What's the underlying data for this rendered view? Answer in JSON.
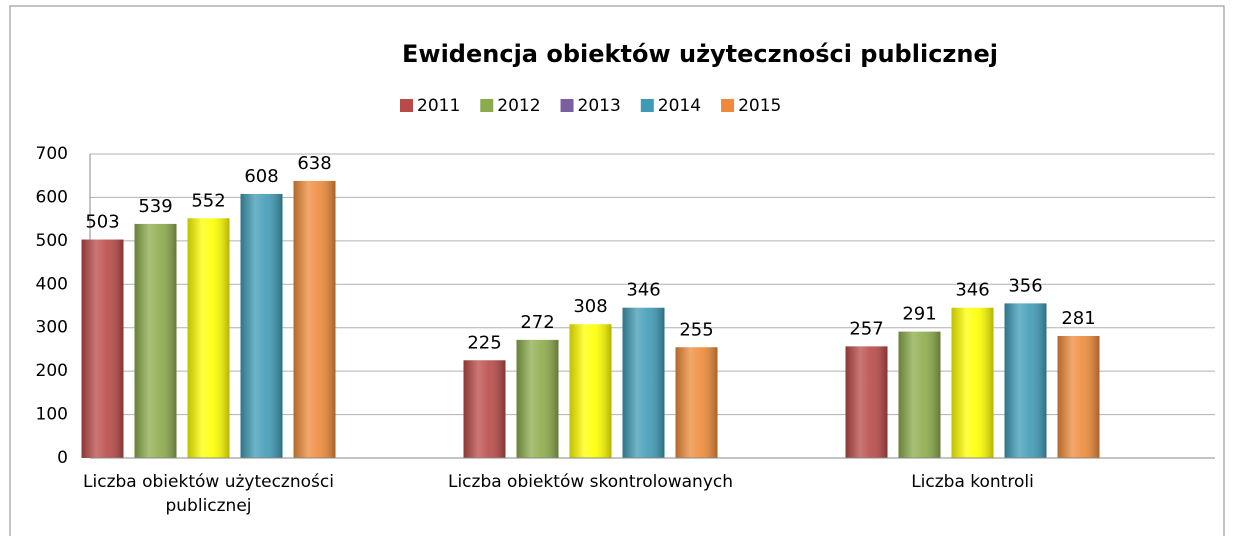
{
  "chart_data": {
    "type": "bar",
    "title": "Ewidencja obiektów użyteczności publicznej",
    "categories": [
      "Liczba obiektów użyteczności publicznej",
      "Liczba obiektów skontrolowanych",
      "Liczba kontroli"
    ],
    "series": [
      {
        "name": "2011",
        "color": "#b94a48",
        "values": [
          503,
          225,
          257
        ]
      },
      {
        "name": "2012",
        "color": "#8cab4b",
        "values": [
          539,
          272,
          291
        ]
      },
      {
        "name": "2013",
        "color": "#ffff00",
        "legend_color": "#7a5fa0",
        "values": [
          552,
          308,
          346
        ]
      },
      {
        "name": "2014",
        "color": "#3f9bb5",
        "values": [
          608,
          346,
          356
        ]
      },
      {
        "name": "2015",
        "color": "#ee8a3a",
        "values": [
          638,
          255,
          281
        ]
      }
    ],
    "ylim": [
      0,
      700
    ],
    "yticks": [
      0,
      100,
      200,
      300,
      400,
      500,
      600,
      700
    ],
    "grid": true,
    "legend": "top"
  }
}
